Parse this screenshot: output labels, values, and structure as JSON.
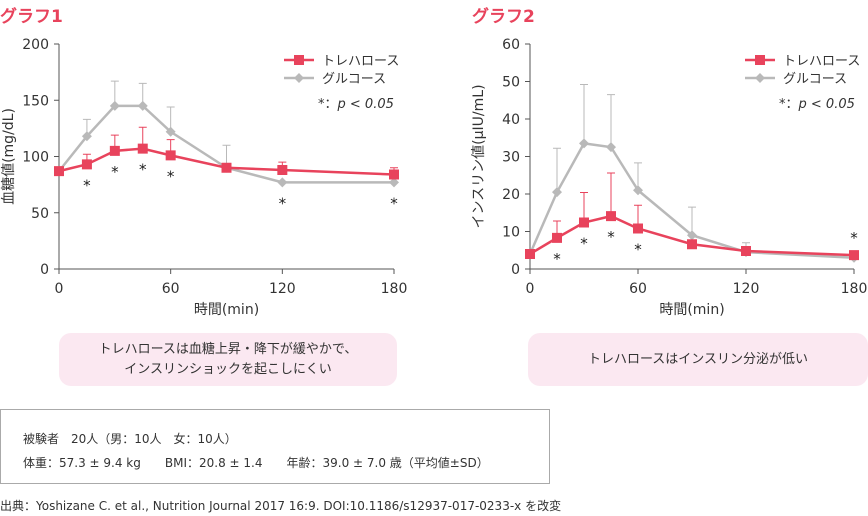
{
  "chart_data": [
    {
      "type": "line",
      "title": "グラフ1",
      "xlabel": "時間(min)",
      "ylabel": "血糖値(mg/dL)",
      "x": [
        0,
        15,
        30,
        45,
        60,
        90,
        120,
        180
      ],
      "xticks": [
        "0",
        "60",
        "120",
        "180"
      ],
      "xlim": [
        0,
        180
      ],
      "ylim": [
        0,
        200
      ],
      "yticks": [
        "0",
        "50",
        "100",
        "150",
        "200"
      ],
      "series": [
        {
          "name": "トレハロース",
          "color": "#e8435c",
          "marker": "square",
          "values": [
            87,
            93,
            105,
            107,
            101,
            90,
            88,
            84
          ],
          "error": [
            0,
            9,
            14,
            19,
            14,
            0,
            7,
            6
          ]
        },
        {
          "name": "グルコース",
          "color": "#b9b9b9",
          "marker": "diamond",
          "values": [
            87,
            118,
            145,
            145,
            122,
            90,
            77,
            77
          ],
          "error": [
            0,
            15,
            22,
            20,
            22,
            20,
            0,
            0
          ]
        }
      ],
      "significance_mark": "*",
      "significant_x": [
        15,
        30,
        45,
        60,
        120,
        180
      ],
      "significance_note": "p < 0.05",
      "legend_position": "top-right"
    },
    {
      "type": "line",
      "title": "グラフ2",
      "xlabel": "時間(min)",
      "ylabel": "インスリン値(μIU/mL)",
      "x": [
        0,
        15,
        30,
        45,
        60,
        90,
        120,
        180
      ],
      "xticks": [
        "0",
        "60",
        "120",
        "180"
      ],
      "xlim": [
        0,
        180
      ],
      "ylim": [
        0,
        60
      ],
      "yticks": [
        "0",
        "10",
        "20",
        "30",
        "40",
        "50",
        "60"
      ],
      "series": [
        {
          "name": "トレハロース",
          "color": "#e8435c",
          "marker": "square",
          "values": [
            4,
            8.3,
            12.4,
            14.1,
            10.8,
            6.6,
            4.8,
            3.7
          ],
          "error": [
            0,
            4.5,
            8,
            11.5,
            6.2,
            0,
            0,
            0
          ]
        },
        {
          "name": "グルコース",
          "color": "#b9b9b9",
          "marker": "diamond",
          "values": [
            4,
            20.5,
            33.5,
            32.5,
            21,
            9,
            4.5,
            3
          ],
          "error": [
            0,
            11.7,
            15.7,
            14,
            7.3,
            7.5,
            2.5,
            0
          ]
        }
      ],
      "significance_mark": "*",
      "significant_x": [
        15,
        30,
        45,
        60,
        180
      ],
      "significance_note": "p < 0.05",
      "legend_position": "top-right"
    }
  ],
  "captions": {
    "graph1_line1": "トレハロースは血糖上昇・降下が緩やかで、",
    "graph1_line2": "インスリンショックを起こしにくい",
    "graph2": "トレハロースはインスリン分泌が低い"
  },
  "subjects": {
    "line1": "被験者　20人（男：10人　女：10人）",
    "line2": "体重：57.3 ± 9.4 kg　　BMI：20.8 ± 1.4　　年齢：39.0 ± 7.0 歳（平均値±SD）"
  },
  "source": "出典：Yoshizane C. et al., Nutrition Journal 2017 16:9. DOI:10.1186/s12937-017-0233-x を改変",
  "colors": {
    "accent": "#e8435c",
    "glucose": "#b9b9b9",
    "caption_bg": "#fbe8f1"
  }
}
